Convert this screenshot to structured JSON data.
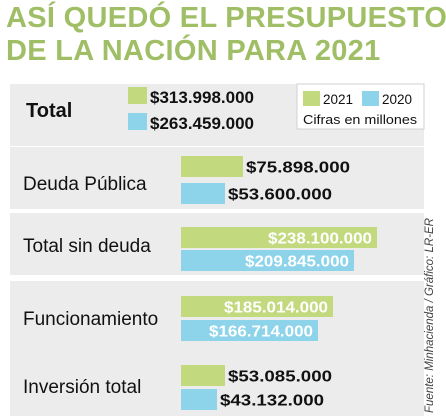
{
  "title_lines": [
    "ASÍ QUEDÓ EL PRESUPUESTO",
    "DE LA NACIÓN PARA 2021"
  ],
  "source": "Fuente: Minhacienda / Gráfico: LR-ER",
  "colors": {
    "title": "#9fbe66",
    "y2021": "#c3d97e",
    "y2020": "#8dd3ea",
    "panel": "#ececec",
    "text": "#111111",
    "value_inside": "#ffffff"
  },
  "legend": {
    "labels": [
      "2021",
      "2020"
    ],
    "note": "Cifras en millones"
  },
  "chart_data": {
    "type": "bar",
    "orientation": "horizontal",
    "unit": "Cifras en millones",
    "categories": [
      "Total",
      "Deuda Pública",
      "Total sin deuda",
      "Funcionamiento",
      "Inversión total"
    ],
    "series": [
      {
        "name": "2021",
        "values": [
          313998000,
          75898000,
          238100000,
          185014000,
          53085000
        ],
        "labels": [
          "$313.998.000",
          "$75.898.000",
          "$238.100.000",
          "$185.014.000",
          "$53.085.000"
        ]
      },
      {
        "name": "2020",
        "values": [
          263459000,
          53600000,
          209845000,
          166714000,
          43132000
        ],
        "labels": [
          "$263.459.000",
          "$53.600.000",
          "$209.845.000",
          "$166.714.000",
          "$43.132.000"
        ]
      }
    ]
  }
}
